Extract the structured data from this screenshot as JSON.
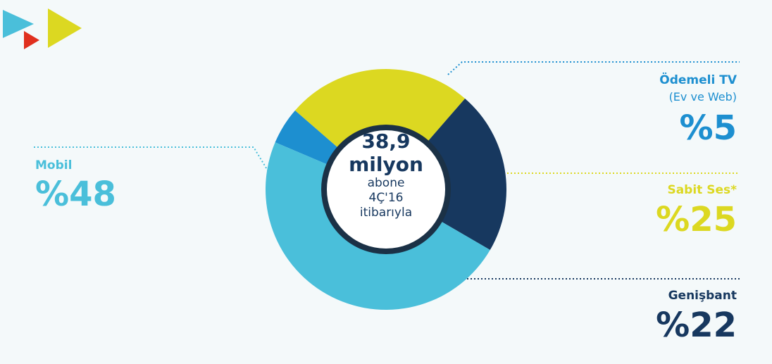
{
  "chart_data": {
    "type": "pie",
    "variant": "donut",
    "slices": [
      {
        "label": "Ödemeli TV",
        "sublabel": "(Ev ve Web)",
        "value": 5,
        "value_label": "%5",
        "color": "#1d8fd0"
      },
      {
        "label": "Sabit Ses*",
        "sublabel": "",
        "value": 25,
        "value_label": "%25",
        "color": "#dcd821"
      },
      {
        "label": "Genişbant",
        "sublabel": "",
        "value": 22,
        "value_label": "%22",
        "color": "#17385f"
      },
      {
        "label": "Mobil",
        "sublabel": "",
        "value": 48,
        "value_label": "%48",
        "color": "#4abfda"
      }
    ],
    "center": {
      "line1": "38,9",
      "line2": "milyon",
      "line3": "abone",
      "line4": "4Ç'16",
      "line5": "itibarıyla"
    },
    "legend": "none",
    "label_placement": "outside with dotted leader lines"
  },
  "decoration": {
    "logo_colors": [
      "#4abfda",
      "#e0301e",
      "#dcd821"
    ]
  }
}
